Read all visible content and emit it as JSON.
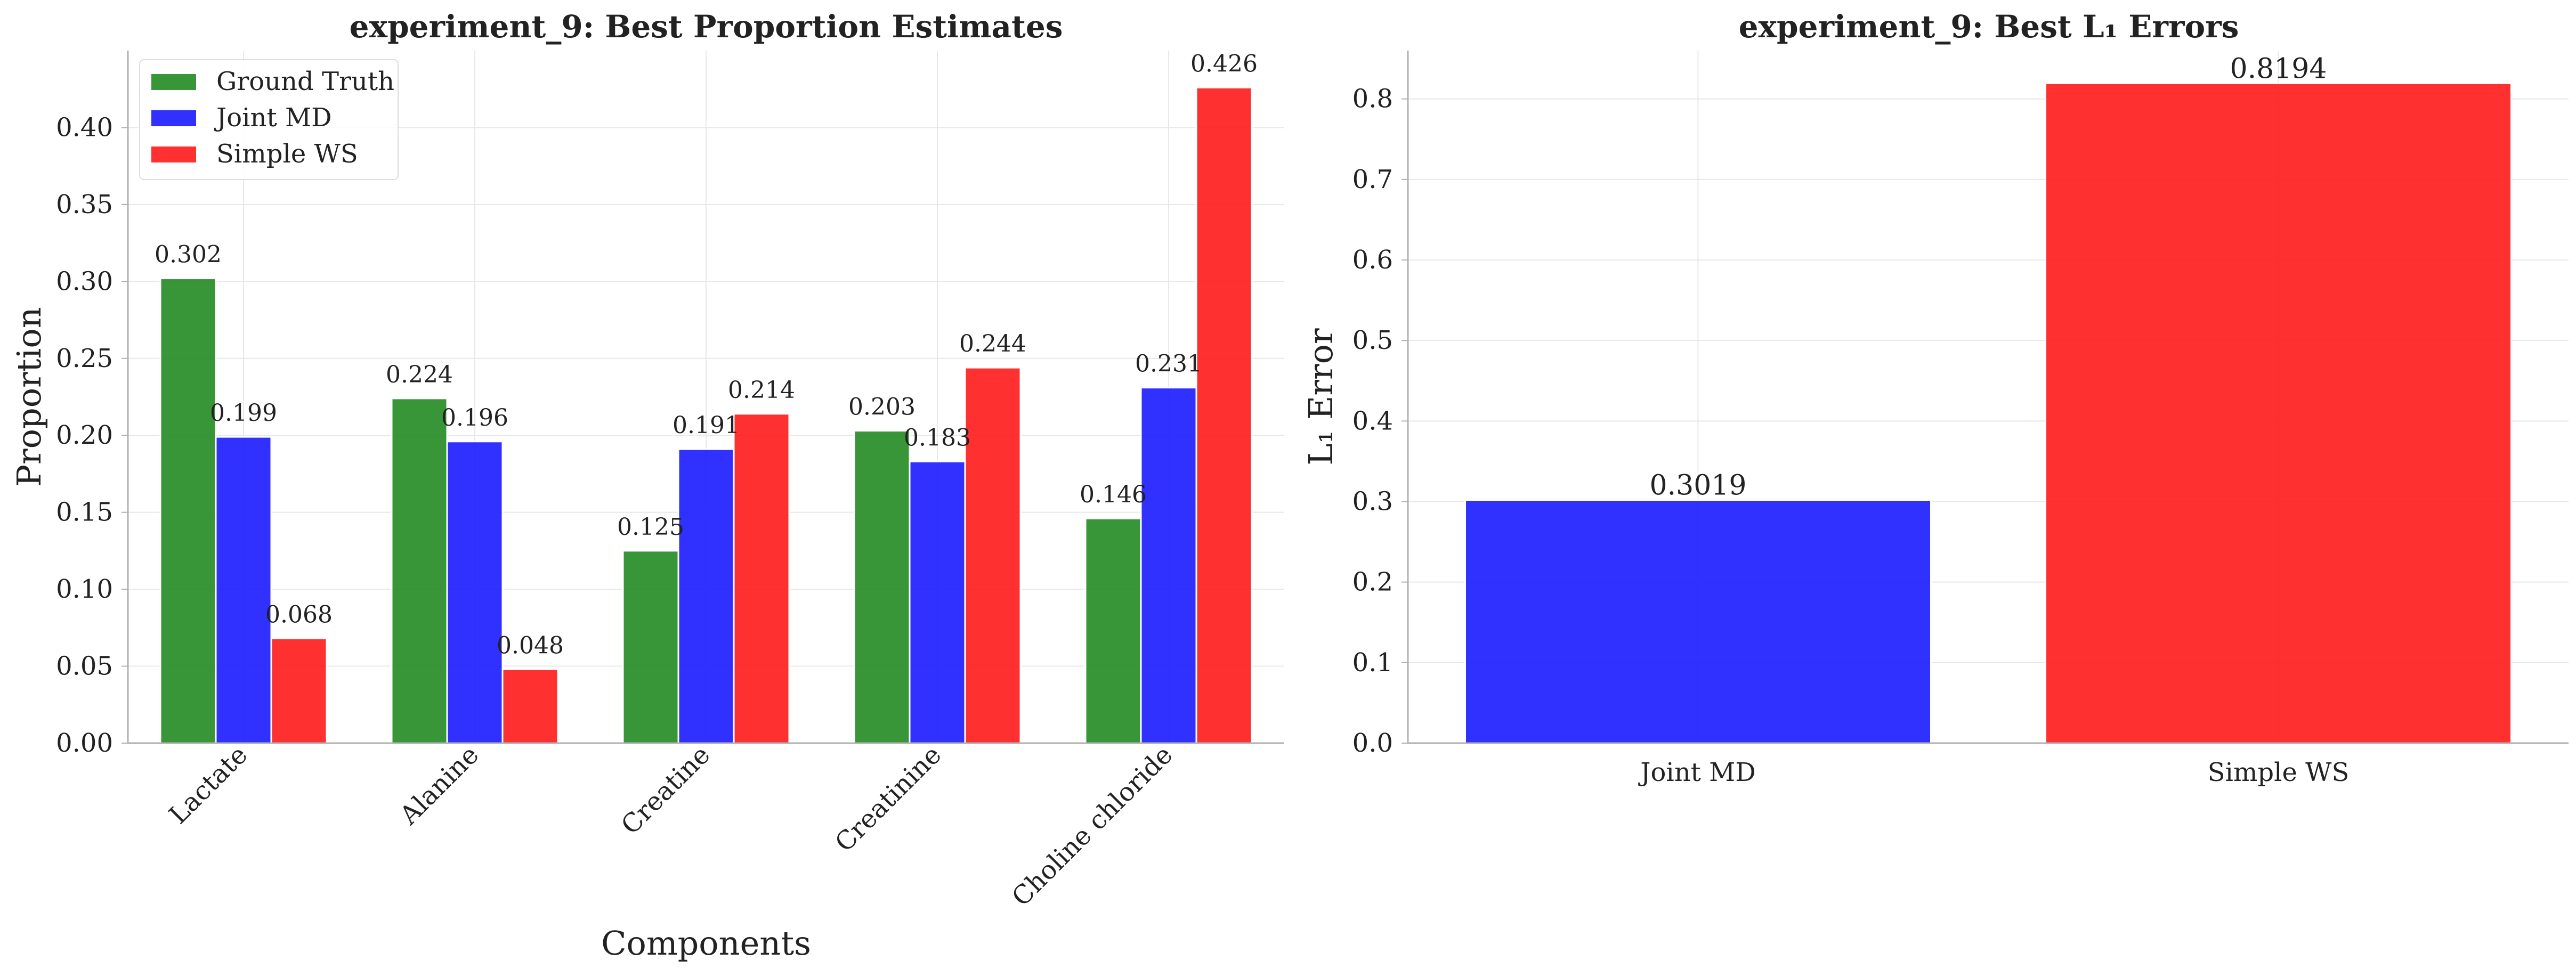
{
  "chart_data": [
    {
      "type": "bar",
      "title": "experiment_9: Best Proportion Estimates",
      "xlabel": "Components",
      "ylabel": "Proportion",
      "categories": [
        "Lactate",
        "Alanine",
        "Creatine",
        "Creatinine",
        "Choline chloride"
      ],
      "series": [
        {
          "name": "Ground Truth",
          "color": "#228B22",
          "values": [
            0.302,
            0.224,
            0.125,
            0.203,
            0.146
          ],
          "labels": [
            "0.302",
            "0.224",
            "0.125",
            "0.203",
            "0.146"
          ]
        },
        {
          "name": "Joint MD",
          "color": "#1A1AFF",
          "values": [
            0.199,
            0.196,
            0.191,
            0.183,
            0.231
          ],
          "labels": [
            "0.199",
            "0.196",
            "0.191",
            "0.183",
            "0.231"
          ]
        },
        {
          "name": "Simple WS",
          "color": "#FF1A1A",
          "values": [
            0.068,
            0.048,
            0.214,
            0.244,
            0.426
          ],
          "labels": [
            "0.068",
            "0.048",
            "0.214",
            "0.244",
            "0.426"
          ]
        }
      ],
      "ylim": [
        0,
        0.45
      ],
      "yticks": [
        0.0,
        0.05,
        0.1,
        0.15,
        0.2,
        0.25,
        0.3,
        0.35,
        0.4
      ],
      "ytick_labels": [
        "0.00",
        "0.05",
        "0.10",
        "0.15",
        "0.20",
        "0.25",
        "0.30",
        "0.35",
        "0.40"
      ],
      "grid": true,
      "legend": "top-left"
    },
    {
      "type": "bar",
      "title": "experiment_9: Best L₁ Errors",
      "xlabel": "",
      "ylabel": "L₁ Error",
      "categories": [
        "Joint MD",
        "Simple WS"
      ],
      "values": [
        0.3019,
        0.8194
      ],
      "labels": [
        "0.3019",
        "0.8194"
      ],
      "colors": [
        "#1A1AFF",
        "#FF1A1A"
      ],
      "ylim": [
        0,
        0.86
      ],
      "yticks": [
        0.0,
        0.1,
        0.2,
        0.3,
        0.4,
        0.5,
        0.6,
        0.7,
        0.8
      ],
      "ytick_labels": [
        "0.0",
        "0.1",
        "0.2",
        "0.3",
        "0.4",
        "0.5",
        "0.6",
        "0.7",
        "0.8"
      ],
      "grid": true
    }
  ]
}
